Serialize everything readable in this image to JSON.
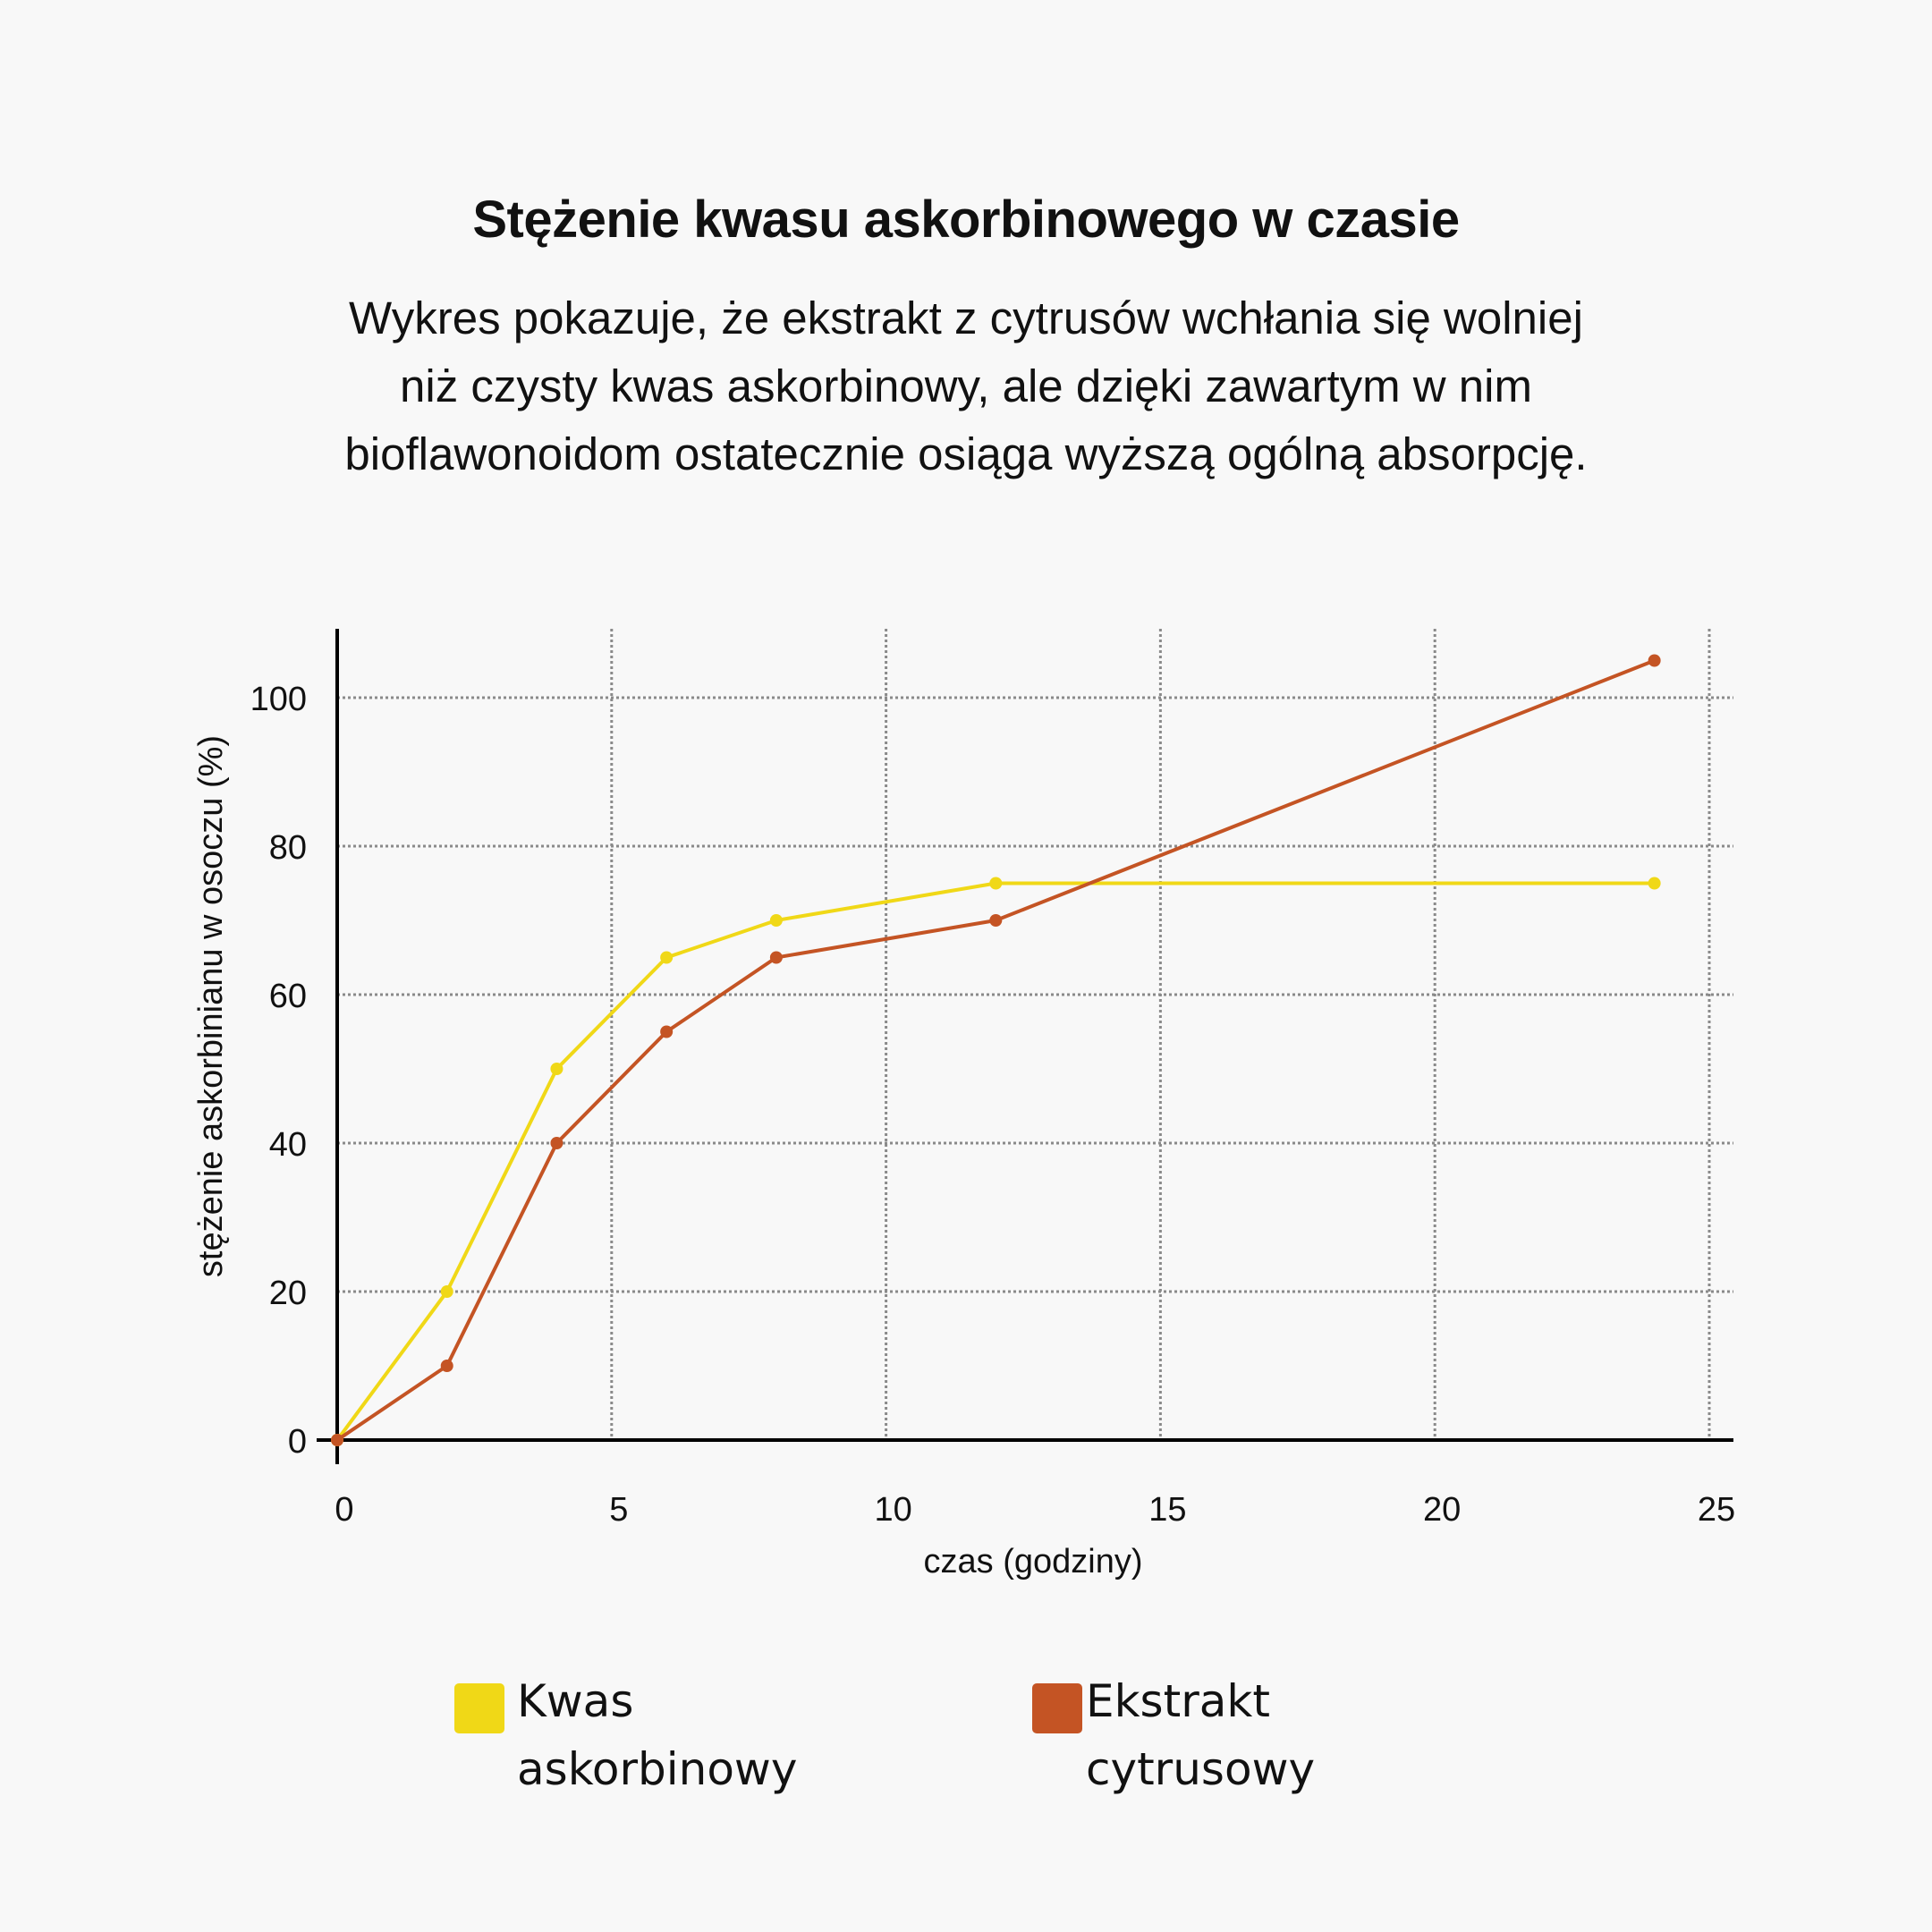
{
  "header": {
    "title": "Stężenie kwasu askorbinowego w czasie",
    "subtitle_lines": [
      "Wykres pokazuje, że ekstrakt z cytrusów wchłania się wolniej",
      "niż czysty kwas askorbinowy, ale dzięki zawartym w nim",
      "bioflawonoidom ostatecznie osiąga wyższą ogólną absorpcję."
    ]
  },
  "legend": [
    {
      "name": "Kwas askorbinowy",
      "lines": [
        "Kwas",
        "askorbinowy"
      ],
      "color": "#f0d817"
    },
    {
      "name": "Ekstrakt cytrusowy",
      "lines": [
        "Ekstrakt",
        "cytrusowy"
      ],
      "color": "#c45424"
    }
  ],
  "chart_data": {
    "type": "line",
    "title": "Stężenie kwasu askorbinowego w czasie",
    "subtitle": "Wykres pokazuje, że ekstrakt z cytrusów wchłania się wolniej niż czysty kwas askorbinowy, ale dzięki zawartym w nim bioflawonoidom ostatecznie osiąga wyższą ogólną absorpcję.",
    "xlabel": "czas (godziny)",
    "ylabel": "stężenie askorbinianu w osoczu (%)",
    "xlim": [
      0,
      25.5
    ],
    "ylim": [
      0,
      110
    ],
    "xticks": [
      0,
      5,
      10,
      15,
      20,
      25
    ],
    "yticks": [
      0,
      20,
      40,
      60,
      80,
      100
    ],
    "grid": true,
    "legend_position": "bottom",
    "x": [
      0,
      2,
      4,
      6,
      8,
      12,
      24
    ],
    "series": [
      {
        "name": "Kwas askorbinowy",
        "color": "#f0d817",
        "values": [
          0,
          20,
          50,
          65,
          70,
          75,
          75
        ]
      },
      {
        "name": "Ekstrakt cytrusowy",
        "color": "#c45424",
        "values": [
          0,
          10,
          40,
          55,
          65,
          70,
          105
        ]
      }
    ]
  }
}
